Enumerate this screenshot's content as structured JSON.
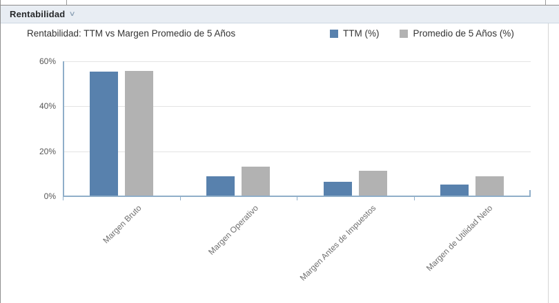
{
  "section": {
    "header_title": "Rentabilidad",
    "chevron": "∨"
  },
  "chart": {
    "title": "Rentabilidad: TTM vs Margen Promedio de 5 Años",
    "legend": [
      {
        "label": "TTM (%)",
        "color": "#5881ad"
      },
      {
        "label": "Promedio de 5 Años (%)",
        "color": "#b2b2b2"
      }
    ]
  },
  "chart_data": {
    "type": "bar",
    "title": "Rentabilidad: TTM vs Margen Promedio de 5 Años",
    "categories": [
      "Margen Bruto",
      "Margen Operativo",
      "Margen Antes de Impuestos",
      "Margen de Utilidad Neto"
    ],
    "series": [
      {
        "name": "TTM (%)",
        "color": "#5881ad",
        "values": [
          55.0,
          8.5,
          6.1,
          4.9
        ]
      },
      {
        "name": "Promedio de 5 Años (%)",
        "color": "#b2b2b2",
        "values": [
          55.5,
          12.8,
          11.0,
          8.7
        ]
      }
    ],
    "xlabel": "",
    "ylabel": "",
    "ylim": [
      0,
      60
    ],
    "yticks": [
      0,
      20,
      40,
      60
    ],
    "ytick_labels": [
      "0%",
      "20%",
      "40%",
      "60%"
    ],
    "grid": true,
    "legend_position": "top-right",
    "colors": {
      "axis": "#8faec9",
      "gridline": "#e3e3e3",
      "tick_label": "#565656",
      "category_label": "#707070"
    }
  }
}
